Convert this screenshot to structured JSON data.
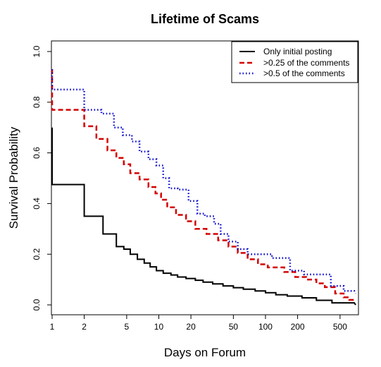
{
  "chart_data": {
    "type": "line",
    "title": "Lifetime of Scams",
    "xlabel": "Days on Forum",
    "ylabel": "Survival Probability",
    "x_scale": "log",
    "xlim": [
      1,
      700
    ],
    "ylim": [
      0,
      1.0
    ],
    "x_ticks": [
      1,
      2,
      5,
      10,
      20,
      50,
      100,
      200,
      500
    ],
    "y_ticks": [
      "0.0",
      "0.2",
      "0.4",
      "0.6",
      "0.8",
      "1.0"
    ],
    "legend_position": "top-right",
    "series": [
      {
        "name": "Only initial posting",
        "color": "#000000",
        "dash": "solid",
        "points": [
          [
            1,
            0.7
          ],
          [
            1,
            0.475
          ],
          [
            2,
            0.475
          ],
          [
            2,
            0.35
          ],
          [
            3,
            0.35
          ],
          [
            3,
            0.28
          ],
          [
            4,
            0.28
          ],
          [
            4,
            0.23
          ],
          [
            4.7,
            0.23
          ],
          [
            4.7,
            0.22
          ],
          [
            5.4,
            0.22
          ],
          [
            5.4,
            0.2
          ],
          [
            6.3,
            0.2
          ],
          [
            6.3,
            0.18
          ],
          [
            7.3,
            0.18
          ],
          [
            7.3,
            0.165
          ],
          [
            8.3,
            0.165
          ],
          [
            8.3,
            0.15
          ],
          [
            9.5,
            0.15
          ],
          [
            9.5,
            0.135
          ],
          [
            11,
            0.135
          ],
          [
            11,
            0.125
          ],
          [
            13,
            0.125
          ],
          [
            13,
            0.118
          ],
          [
            15,
            0.118
          ],
          [
            15,
            0.11
          ],
          [
            18,
            0.11
          ],
          [
            18,
            0.104
          ],
          [
            22,
            0.104
          ],
          [
            22,
            0.097
          ],
          [
            26,
            0.097
          ],
          [
            26,
            0.09
          ],
          [
            32,
            0.09
          ],
          [
            32,
            0.083
          ],
          [
            40,
            0.083
          ],
          [
            40,
            0.075
          ],
          [
            50,
            0.075
          ],
          [
            50,
            0.068
          ],
          [
            62,
            0.068
          ],
          [
            62,
            0.062
          ],
          [
            80,
            0.062
          ],
          [
            80,
            0.055
          ],
          [
            100,
            0.055
          ],
          [
            100,
            0.048
          ],
          [
            125,
            0.048
          ],
          [
            125,
            0.04
          ],
          [
            160,
            0.04
          ],
          [
            160,
            0.035
          ],
          [
            220,
            0.035
          ],
          [
            220,
            0.028
          ],
          [
            300,
            0.028
          ],
          [
            300,
            0.018
          ],
          [
            420,
            0.018
          ],
          [
            420,
            0.008
          ],
          [
            680,
            0.008
          ],
          [
            700,
            0.0
          ]
        ]
      },
      {
        "name": ">0.25 of the comments",
        "color": "#d40000",
        "dash": "dashed",
        "points": [
          [
            1,
            0.93
          ],
          [
            1,
            0.77
          ],
          [
            2,
            0.77
          ],
          [
            2,
            0.705
          ],
          [
            2.6,
            0.705
          ],
          [
            2.6,
            0.655
          ],
          [
            3.3,
            0.655
          ],
          [
            3.3,
            0.61
          ],
          [
            4,
            0.61
          ],
          [
            4,
            0.58
          ],
          [
            4.7,
            0.58
          ],
          [
            4.7,
            0.555
          ],
          [
            5.4,
            0.555
          ],
          [
            5.4,
            0.52
          ],
          [
            6.6,
            0.52
          ],
          [
            6.6,
            0.495
          ],
          [
            8,
            0.495
          ],
          [
            8,
            0.465
          ],
          [
            9.3,
            0.465
          ],
          [
            9.3,
            0.44
          ],
          [
            10.5,
            0.44
          ],
          [
            10.5,
            0.415
          ],
          [
            12,
            0.415
          ],
          [
            12,
            0.385
          ],
          [
            14.5,
            0.385
          ],
          [
            14.5,
            0.355
          ],
          [
            18,
            0.355
          ],
          [
            18,
            0.33
          ],
          [
            22,
            0.33
          ],
          [
            22,
            0.3
          ],
          [
            28,
            0.3
          ],
          [
            28,
            0.28
          ],
          [
            36,
            0.28
          ],
          [
            36,
            0.255
          ],
          [
            45,
            0.255
          ],
          [
            45,
            0.23
          ],
          [
            55,
            0.23
          ],
          [
            55,
            0.205
          ],
          [
            68,
            0.205
          ],
          [
            68,
            0.18
          ],
          [
            85,
            0.18
          ],
          [
            85,
            0.16
          ],
          [
            105,
            0.16
          ],
          [
            105,
            0.148
          ],
          [
            150,
            0.148
          ],
          [
            150,
            0.13
          ],
          [
            190,
            0.13
          ],
          [
            190,
            0.11
          ],
          [
            240,
            0.11
          ],
          [
            240,
            0.1
          ],
          [
            300,
            0.1
          ],
          [
            300,
            0.085
          ],
          [
            360,
            0.085
          ],
          [
            360,
            0.07
          ],
          [
            450,
            0.07
          ],
          [
            450,
            0.045
          ],
          [
            540,
            0.045
          ],
          [
            540,
            0.03
          ],
          [
            610,
            0.03
          ],
          [
            610,
            0.02
          ],
          [
            700,
            0.02
          ]
        ]
      },
      {
        "name": ">0.5 of the comments",
        "color": "#0000cc",
        "dash": "dotted",
        "points": [
          [
            1,
            0.93
          ],
          [
            1,
            0.85
          ],
          [
            2,
            0.85
          ],
          [
            2,
            0.77
          ],
          [
            2.9,
            0.77
          ],
          [
            2.9,
            0.755
          ],
          [
            3.8,
            0.755
          ],
          [
            3.8,
            0.7
          ],
          [
            4.6,
            0.7
          ],
          [
            4.6,
            0.67
          ],
          [
            5.6,
            0.67
          ],
          [
            5.6,
            0.645
          ],
          [
            6.6,
            0.645
          ],
          [
            6.6,
            0.605
          ],
          [
            8,
            0.605
          ],
          [
            8,
            0.575
          ],
          [
            9.5,
            0.575
          ],
          [
            9.5,
            0.55
          ],
          [
            11,
            0.55
          ],
          [
            11,
            0.5
          ],
          [
            12.5,
            0.5
          ],
          [
            12.5,
            0.46
          ],
          [
            15,
            0.46
          ],
          [
            15,
            0.455
          ],
          [
            19,
            0.455
          ],
          [
            19,
            0.41
          ],
          [
            23,
            0.41
          ],
          [
            23,
            0.36
          ],
          [
            27,
            0.36
          ],
          [
            27,
            0.35
          ],
          [
            33,
            0.35
          ],
          [
            33,
            0.32
          ],
          [
            38,
            0.32
          ],
          [
            38,
            0.28
          ],
          [
            45,
            0.28
          ],
          [
            45,
            0.25
          ],
          [
            55,
            0.25
          ],
          [
            55,
            0.22
          ],
          [
            68,
            0.22
          ],
          [
            68,
            0.2
          ],
          [
            115,
            0.2
          ],
          [
            115,
            0.185
          ],
          [
            170,
            0.185
          ],
          [
            170,
            0.135
          ],
          [
            230,
            0.135
          ],
          [
            230,
            0.12
          ],
          [
            410,
            0.12
          ],
          [
            410,
            0.075
          ],
          [
            540,
            0.075
          ],
          [
            540,
            0.055
          ],
          [
            680,
            0.055
          ],
          [
            700,
            0.045
          ]
        ]
      }
    ]
  }
}
